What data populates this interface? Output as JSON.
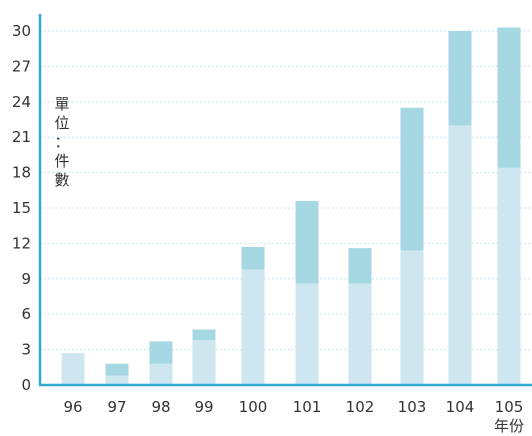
{
  "chart_data": {
    "type": "bar",
    "stacked": true,
    "categories": [
      "96",
      "97",
      "98",
      "99",
      "100",
      "101",
      "102",
      "103",
      "104",
      "105"
    ],
    "series": [
      {
        "values": [
          2.7,
          0.8,
          1.8,
          3.8,
          9.8,
          8.6,
          8.6,
          11.4,
          22.0,
          18.4
        ],
        "color": "#cde6f0"
      },
      {
        "values": [
          0.0,
          1.0,
          1.9,
          0.9,
          1.9,
          7.0,
          3.0,
          12.1,
          8.0,
          11.9
        ],
        "color": "#a6d8e4"
      }
    ],
    "y_ticks": [
      0,
      3,
      6,
      9,
      12,
      15,
      18,
      21,
      24,
      27,
      30
    ],
    "ylim": [
      0,
      30
    ],
    "ylabel": "單位：件數",
    "xlabel": "年份",
    "grid": true,
    "axis_color": "#33a8d0",
    "grid_color": "#c8e6f2"
  }
}
